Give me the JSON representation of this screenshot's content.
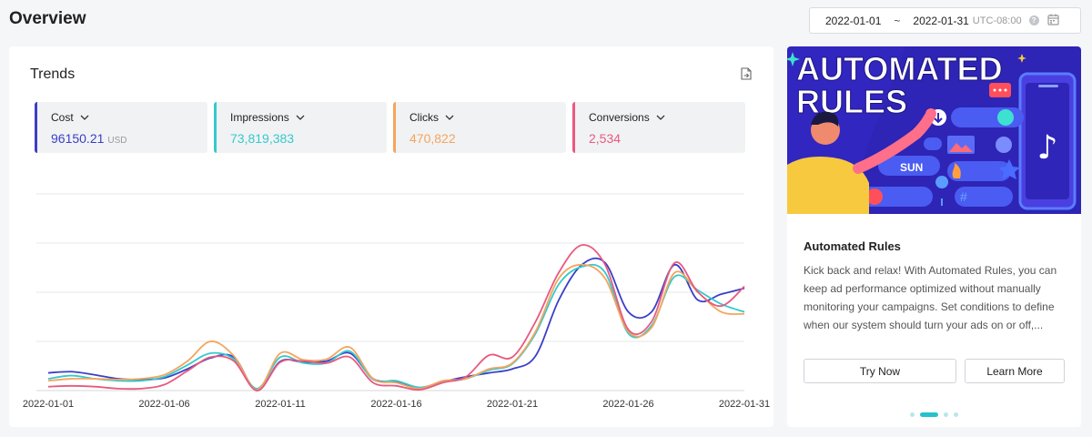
{
  "header": {
    "title": "Overview"
  },
  "date_range": {
    "start": "2022-01-01",
    "separator": "~",
    "end": "2022-01-31",
    "timezone": "UTC-08:00"
  },
  "trends": {
    "title": "Trends",
    "metrics": [
      {
        "label": "Cost",
        "value": "96150.21",
        "unit": "USD",
        "color": "#3a3fc5"
      },
      {
        "label": "Impressions",
        "value": "73,819,383",
        "unit": "",
        "color": "#35c9cc"
      },
      {
        "label": "Clicks",
        "value": "470,822",
        "unit": "",
        "color": "#f4a55d"
      },
      {
        "label": "Conversions",
        "value": "2,534",
        "unit": "",
        "color": "#e85a7f"
      }
    ]
  },
  "chart_data": {
    "type": "line",
    "x": [
      "2022-01-01",
      "2022-01-02",
      "2022-01-03",
      "2022-01-04",
      "2022-01-05",
      "2022-01-06",
      "2022-01-07",
      "2022-01-08",
      "2022-01-09",
      "2022-01-10",
      "2022-01-11",
      "2022-01-12",
      "2022-01-13",
      "2022-01-14",
      "2022-01-15",
      "2022-01-16",
      "2022-01-17",
      "2022-01-18",
      "2022-01-19",
      "2022-01-20",
      "2022-01-21",
      "2022-01-22",
      "2022-01-23",
      "2022-01-24",
      "2022-01-25",
      "2022-01-26",
      "2022-01-27",
      "2022-01-28",
      "2022-01-29",
      "2022-01-30",
      "2022-01-31"
    ],
    "xticks": [
      "2022-01-01",
      "2022-01-06",
      "2022-01-11",
      "2022-01-16",
      "2022-01-21",
      "2022-01-26",
      "2022-01-31"
    ],
    "ylim": [
      0,
      5
    ],
    "grid": true,
    "legend": "none",
    "series": [
      {
        "name": "Cost",
        "color": "#3a3fc5",
        "values": [
          0.45,
          0.48,
          0.4,
          0.3,
          0.28,
          0.32,
          0.55,
          0.83,
          0.85,
          0.0,
          0.74,
          0.72,
          0.75,
          0.95,
          0.3,
          0.22,
          0.05,
          0.22,
          0.35,
          0.45,
          0.55,
          0.88,
          2.3,
          3.2,
          3.25,
          2.0,
          2.0,
          3.2,
          2.3,
          2.45,
          2.6
        ]
      },
      {
        "name": "Impressions",
        "color": "#35c9cc",
        "values": [
          0.3,
          0.38,
          0.3,
          0.25,
          0.25,
          0.35,
          0.65,
          0.95,
          0.8,
          0.05,
          0.85,
          0.7,
          0.7,
          1.0,
          0.28,
          0.25,
          0.08,
          0.22,
          0.3,
          0.52,
          0.68,
          1.45,
          2.7,
          3.15,
          3.0,
          1.45,
          1.65,
          2.9,
          2.55,
          2.2,
          2.0
        ]
      },
      {
        "name": "Clicks",
        "color": "#f4a55d",
        "values": [
          0.25,
          0.3,
          0.3,
          0.28,
          0.3,
          0.4,
          0.75,
          1.25,
          0.88,
          0.02,
          0.95,
          0.78,
          0.8,
          1.1,
          0.3,
          0.2,
          0.05,
          0.25,
          0.3,
          0.55,
          0.7,
          1.5,
          2.85,
          3.2,
          2.85,
          1.5,
          1.6,
          3.0,
          2.5,
          2.0,
          1.95
        ]
      },
      {
        "name": "Conversions",
        "color": "#e85a7f",
        "values": [
          0.1,
          0.12,
          0.1,
          0.05,
          0.05,
          0.15,
          0.5,
          0.85,
          0.75,
          0.0,
          0.72,
          0.75,
          0.7,
          0.85,
          0.2,
          0.12,
          0.02,
          0.2,
          0.35,
          0.9,
          0.85,
          1.75,
          3.0,
          3.7,
          3.2,
          1.55,
          1.75,
          3.25,
          2.5,
          2.15,
          2.65
        ]
      }
    ]
  },
  "promo": {
    "image_text_line1": "AUTOMATED",
    "image_text_line2": "RULES",
    "image_sun": "SUN",
    "image_hash": "#",
    "title": "Automated Rules",
    "description": "Kick back and relax! With Automated Rules, you can keep ad performance optimized without manually monitoring your campaigns. Set conditions to define when our system should turn your ads on or off,...",
    "try_label": "Try Now",
    "learn_label": "Learn More",
    "carousel_index": 1,
    "carousel_count": 3
  }
}
